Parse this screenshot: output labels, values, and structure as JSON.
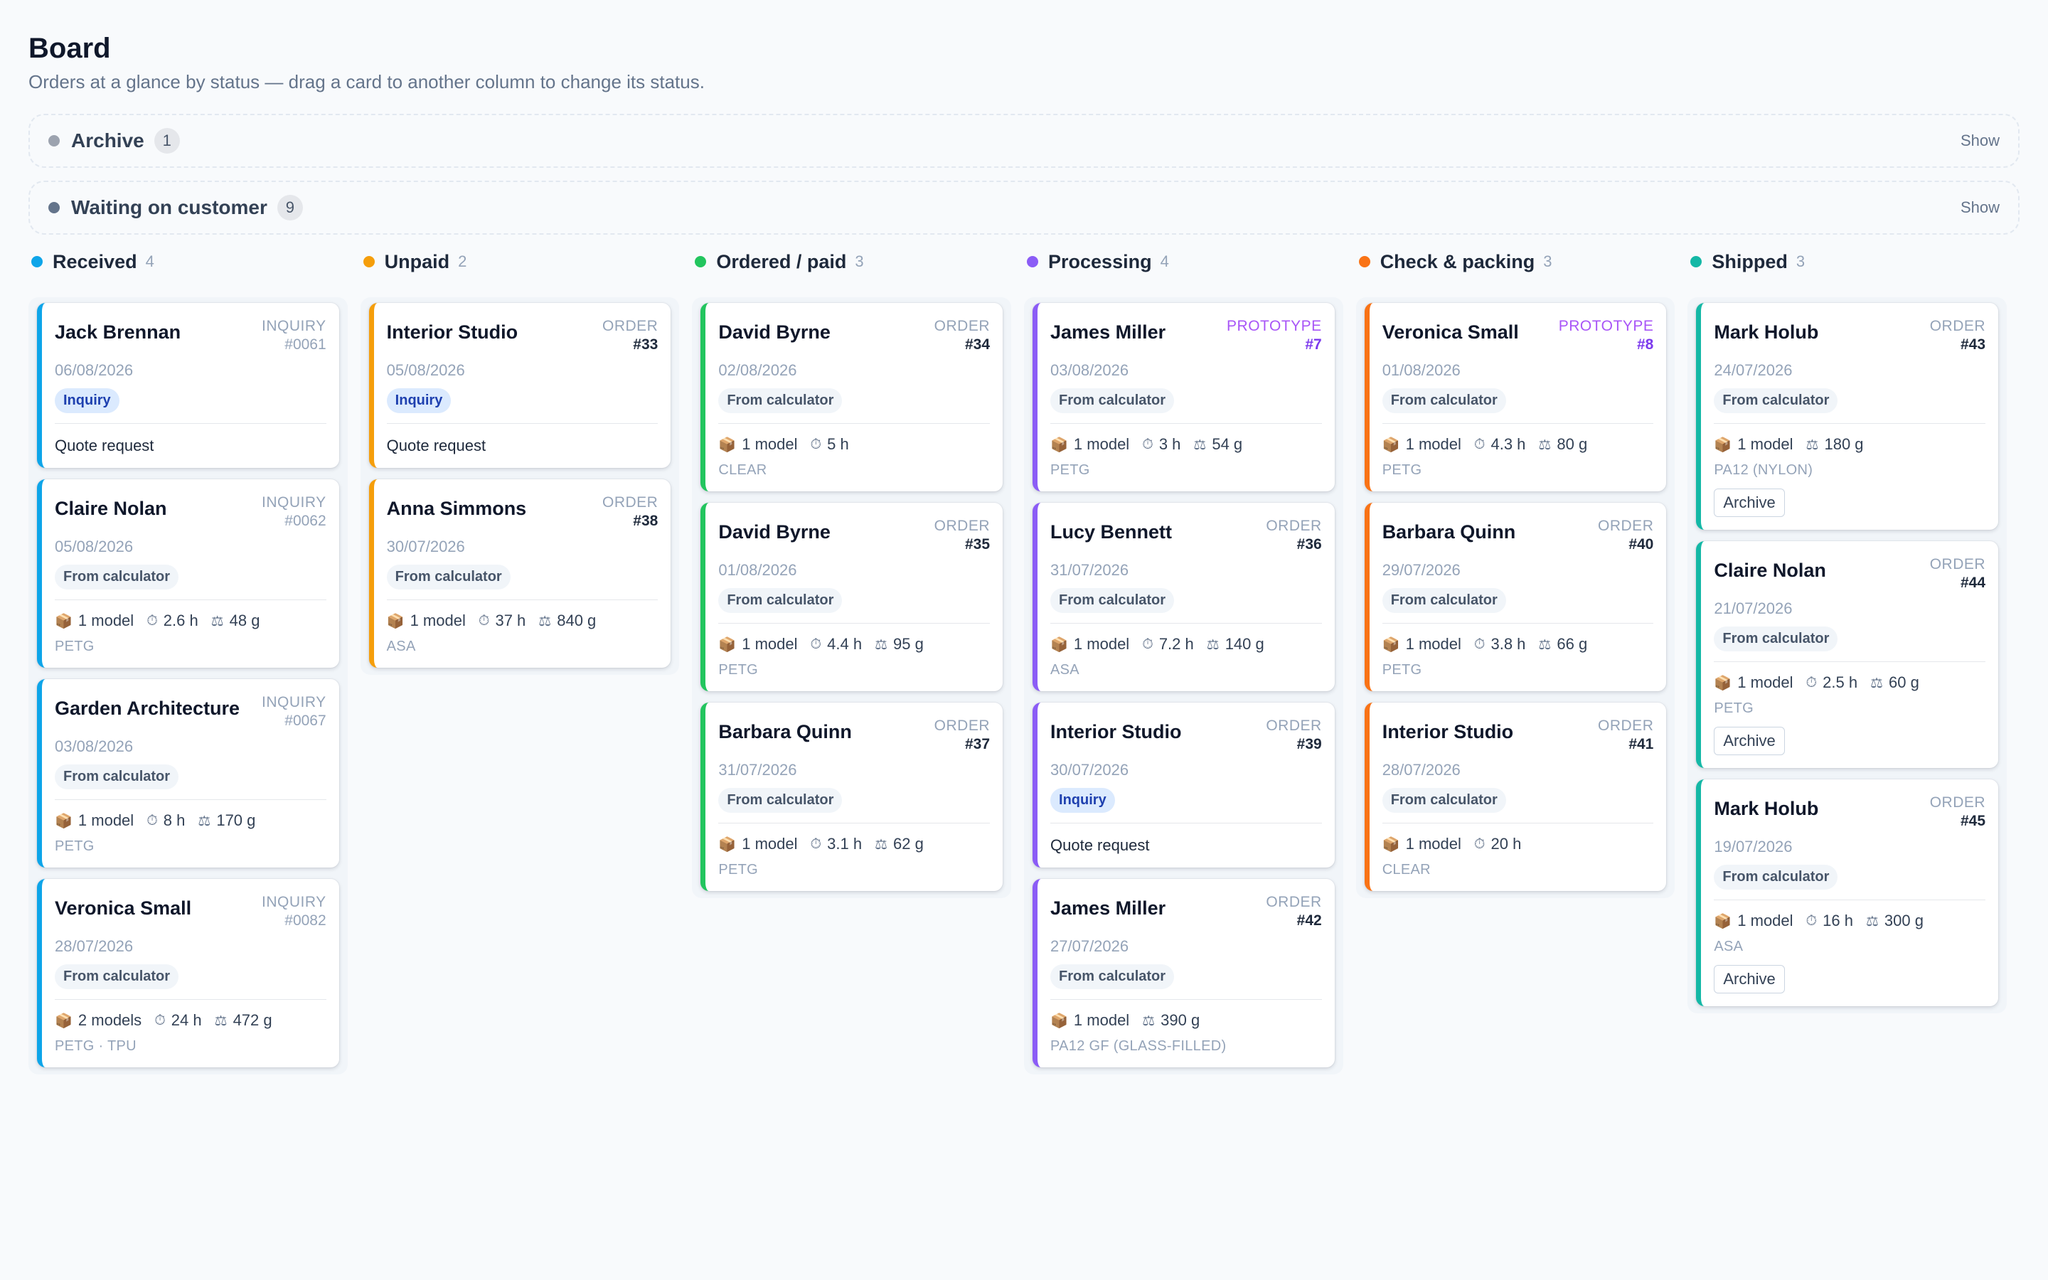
{
  "header": {
    "title": "Board",
    "subtitle": "Orders at a glance by status — drag a card to another column to change its status."
  },
  "collapsed_groups": [
    {
      "name": "Archive",
      "count": "1",
      "action": "Show",
      "color": "#9ca3af"
    },
    {
      "name": "Waiting on customer",
      "count": "9",
      "action": "Show",
      "color": "#64748b"
    }
  ],
  "icons": {
    "models": "package-icon",
    "time": "stopwatch-icon",
    "weight": "scale-icon"
  },
  "columns": [
    {
      "name": "Received",
      "count": "4",
      "color": "#0ea5e9",
      "cards": [
        {
          "customer": "Jack Brennan",
          "kind": "INQUIRY",
          "num": "#0061",
          "ref_style": "inq",
          "date": "06/08/2026",
          "tag": "Inquiry",
          "tag_style": "inquiry",
          "quote": "Quote request"
        },
        {
          "customer": "Claire Nolan",
          "kind": "INQUIRY",
          "num": "#0062",
          "ref_style": "inq",
          "date": "05/08/2026",
          "tag": "From calculator",
          "models": "1 model",
          "time": "2.6 h",
          "weight": "48 g",
          "material": "PETG"
        },
        {
          "customer": "Garden Architecture",
          "kind": "INQUIRY",
          "num": "#0067",
          "ref_style": "inq",
          "date": "03/08/2026",
          "tag": "From calculator",
          "models": "1 model",
          "time": "8 h",
          "weight": "170 g",
          "material": "PETG"
        },
        {
          "customer": "Veronica Small",
          "kind": "INQUIRY",
          "num": "#0082",
          "ref_style": "inq",
          "date": "28/07/2026",
          "tag": "From calculator",
          "models": "2 models",
          "time": "24 h",
          "weight": "472 g",
          "material": "PETG · TPU"
        }
      ]
    },
    {
      "name": "Unpaid",
      "count": "2",
      "color": "#f59e0b",
      "cards": [
        {
          "customer": "Interior Studio",
          "kind": "ORDER",
          "num": "#33",
          "date": "05/08/2026",
          "tag": "Inquiry",
          "tag_style": "inquiry",
          "quote": "Quote request"
        },
        {
          "customer": "Anna Simmons",
          "kind": "ORDER",
          "num": "#38",
          "date": "30/07/2026",
          "tag": "From calculator",
          "models": "1 model",
          "time": "37 h",
          "weight": "840 g",
          "material": "ASA"
        }
      ]
    },
    {
      "name": "Ordered / paid",
      "count": "3",
      "color": "#22c55e",
      "cards": [
        {
          "customer": "David Byrne",
          "kind": "ORDER",
          "num": "#34",
          "date": "02/08/2026",
          "tag": "From calculator",
          "models": "1 model",
          "time": "5 h",
          "material": "CLEAR"
        },
        {
          "customer": "David Byrne",
          "kind": "ORDER",
          "num": "#35",
          "date": "01/08/2026",
          "tag": "From calculator",
          "models": "1 model",
          "time": "4.4 h",
          "weight": "95 g",
          "material": "PETG"
        },
        {
          "customer": "Barbara Quinn",
          "kind": "ORDER",
          "num": "#37",
          "date": "31/07/2026",
          "tag": "From calculator",
          "models": "1 model",
          "time": "3.1 h",
          "weight": "62 g",
          "material": "PETG"
        }
      ]
    },
    {
      "name": "Processing",
      "count": "4",
      "color": "#8b5cf6",
      "cards": [
        {
          "customer": "James Miller",
          "kind": "PROTOTYPE",
          "num": "#7",
          "ref_style": "proto",
          "date": "03/08/2026",
          "tag": "From calculator",
          "models": "1 model",
          "time": "3 h",
          "weight": "54 g",
          "material": "PETG"
        },
        {
          "customer": "Lucy Bennett",
          "kind": "ORDER",
          "num": "#36",
          "date": "31/07/2026",
          "tag": "From calculator",
          "models": "1 model",
          "time": "7.2 h",
          "weight": "140 g",
          "material": "ASA"
        },
        {
          "customer": "Interior Studio",
          "kind": "ORDER",
          "num": "#39",
          "date": "30/07/2026",
          "tag": "Inquiry",
          "tag_style": "inquiry",
          "quote": "Quote request"
        },
        {
          "customer": "James Miller",
          "kind": "ORDER",
          "num": "#42",
          "date": "27/07/2026",
          "tag": "From calculator",
          "models": "1 model",
          "weight": "390 g",
          "material": "PA12 GF (GLASS-FILLED)"
        }
      ]
    },
    {
      "name": "Check & packing",
      "count": "3",
      "color": "#f97316",
      "cards": [
        {
          "customer": "Veronica Small",
          "kind": "PROTOTYPE",
          "num": "#8",
          "ref_style": "proto",
          "date": "01/08/2026",
          "tag": "From calculator",
          "models": "1 model",
          "time": "4.3 h",
          "weight": "80 g",
          "material": "PETG"
        },
        {
          "customer": "Barbara Quinn",
          "kind": "ORDER",
          "num": "#40",
          "date": "29/07/2026",
          "tag": "From calculator",
          "models": "1 model",
          "time": "3.8 h",
          "weight": "66 g",
          "material": "PETG"
        },
        {
          "customer": "Interior Studio",
          "kind": "ORDER",
          "num": "#41",
          "date": "28/07/2026",
          "tag": "From calculator",
          "models": "1 model",
          "time": "20 h",
          "material": "CLEAR"
        }
      ]
    },
    {
      "name": "Shipped",
      "count": "3",
      "color": "#14b8a6",
      "cards": [
        {
          "customer": "Mark Holub",
          "kind": "ORDER",
          "num": "#43",
          "date": "24/07/2026",
          "tag": "From calculator",
          "models": "1 model",
          "weight": "180 g",
          "material": "PA12 (NYLON)",
          "action": "Archive"
        },
        {
          "customer": "Claire Nolan",
          "kind": "ORDER",
          "num": "#44",
          "date": "21/07/2026",
          "tag": "From calculator",
          "models": "1 model",
          "time": "2.5 h",
          "weight": "60 g",
          "material": "PETG",
          "action": "Archive"
        },
        {
          "customer": "Mark Holub",
          "kind": "ORDER",
          "num": "#45",
          "date": "19/07/2026",
          "tag": "From calculator",
          "models": "1 model",
          "time": "16 h",
          "weight": "300 g",
          "material": "ASA",
          "action": "Archive"
        }
      ]
    }
  ]
}
